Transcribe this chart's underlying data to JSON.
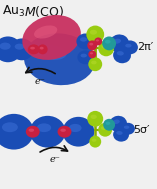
{
  "bg_color": "#f0f0f0",
  "blue": "#1a4db5",
  "blue_light": "#4477dd",
  "red": "#c82040",
  "pink": "#dd3355",
  "pink_light": "#ee6688",
  "green_yellow": "#99cc11",
  "green_yellow2": "#bbdd33",
  "teal": "#229999",
  "teal_light": "#33bbbb",
  "dark": "#111111",
  "label_top": "2π′",
  "label_bot": "5σ′",
  "elec_label": "e⁻"
}
